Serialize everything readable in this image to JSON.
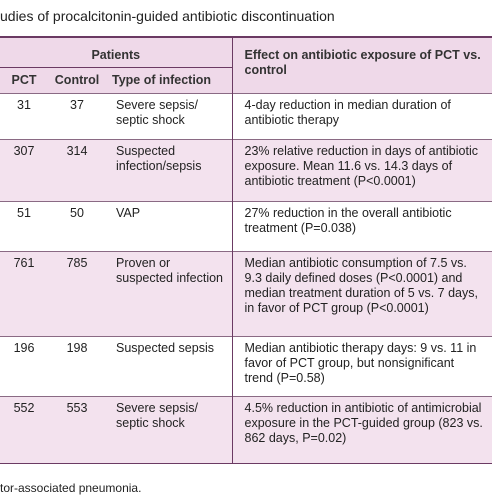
{
  "header": {
    "title": "udies of procalcitonin-guided antibiotic discontinuation"
  },
  "table": {
    "group_header": "Patients",
    "columns": [
      "PCT",
      "Control",
      "Type of infection",
      "Effect on antibiotic exposure of PCT vs. control"
    ],
    "rows": [
      [
        "31",
        "37",
        "Severe sepsis/ septic shock",
        "4-day reduction in median duration of antibiotic therapy"
      ],
      [
        "307",
        "314",
        "Suspected infection/sepsis",
        "23% relative reduction in days of antibiotic exposure. Mean 11.6 vs. 14.3 days of antibiotic treatment (P<0.0001)"
      ],
      [
        "51",
        "50",
        "VAP",
        "27% reduction in the overall antibiotic treatment (P=0.038)"
      ],
      [
        "761",
        "785",
        "Proven or suspected infection",
        "Median antibiotic consumption of 7.5 vs. 9.3 daily defined doses (P<0.0001) and median treatment duration of 5 vs. 7 days, in favor of PCT group (P<0.0001)"
      ],
      [
        "196",
        "198",
        "Suspected sepsis",
        "Median antibiotic therapy days: 9 vs. 11 in favor of PCT group, but nonsignificant trend (P=0.58)"
      ],
      [
        "552",
        "553",
        "Severe sepsis/ septic shock",
        "4.5% reduction in antibiotic of antimicrobial exposure in the PCT-guided group (823 vs. 862 days, P=0.02)"
      ]
    ]
  },
  "footnote": "tor-associated pneumonia."
}
